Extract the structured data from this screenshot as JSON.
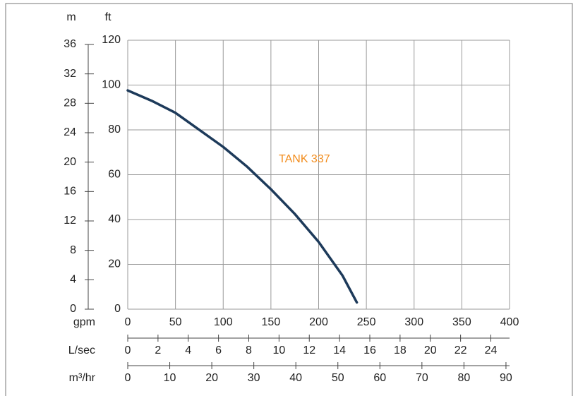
{
  "chart_data": {
    "type": "line",
    "x_label": "gpm",
    "y_label": "ft",
    "y2_label": "m",
    "x": [
      0,
      25,
      50,
      100,
      125,
      150,
      175,
      200,
      225,
      240
    ],
    "series": [
      {
        "name": "TANK 337",
        "color": "#1d3a5a",
        "label_color": "#f28c1c",
        "values": [
          97.6,
          93,
          87.6,
          72.4,
          63.6,
          53.5,
          42.5,
          30,
          15,
          3
        ]
      }
    ],
    "xlim": [
      0,
      400
    ],
    "xticks": [
      0,
      50,
      100,
      150,
      200,
      250,
      300,
      350,
      400
    ],
    "ylim": [
      0,
      120
    ],
    "yticks": [
      0,
      20,
      40,
      60,
      80,
      100,
      120
    ],
    "y2lim": [
      0,
      36.576
    ],
    "y2ticks": [
      0,
      4,
      8,
      12,
      16,
      20,
      24,
      28,
      32,
      36
    ],
    "grid": true,
    "extra_x_axes": [
      {
        "label": "L/sec",
        "lim": [
          0,
          25.236
        ],
        "ticks": [
          0,
          2,
          4,
          6,
          8,
          10,
          12,
          14,
          16,
          18,
          20,
          22,
          24
        ]
      },
      {
        "label": "m³/hr",
        "lim": [
          0,
          90.85
        ],
        "ticks": [
          0,
          10,
          20,
          30,
          40,
          50,
          60,
          70,
          80,
          90
        ]
      }
    ]
  }
}
